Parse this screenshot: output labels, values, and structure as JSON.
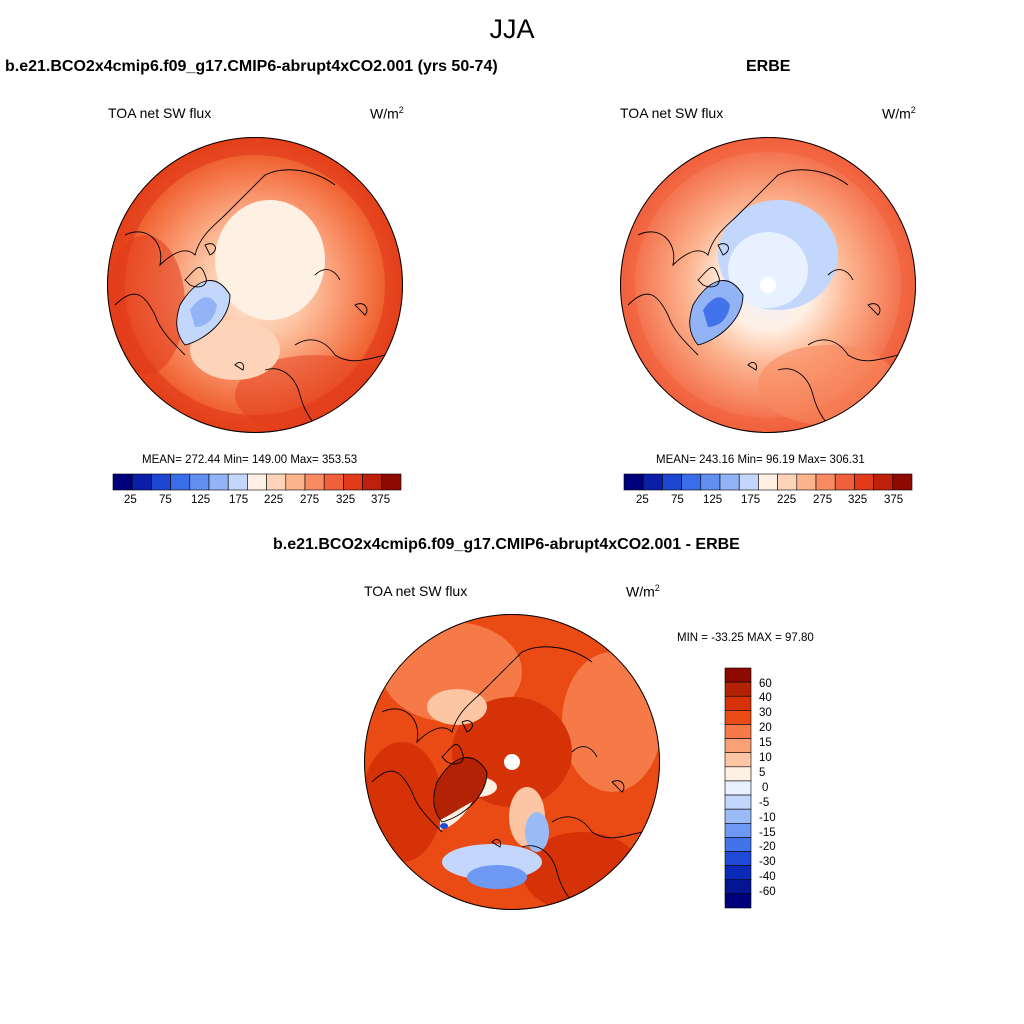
{
  "main_title": "JJA",
  "colors": {
    "seq_palette": [
      "#00007b",
      "#0b1fa6",
      "#1e48d1",
      "#3a6ee8",
      "#6390f0",
      "#92b3f6",
      "#c3d6fb",
      "#fff0e4",
      "#fdd3b9",
      "#fcb48f",
      "#f88b61",
      "#f1603c",
      "#e13b1c",
      "#bd200b",
      "#8c0a00"
    ],
    "diff_palette": [
      "#8c0a00",
      "#b32205",
      "#d63208",
      "#ea4a14",
      "#f67a48",
      "#fba177",
      "#fcc6a4",
      "#fff0e4",
      "#e8f1ff",
      "#c3d6fb",
      "#9bbbf7",
      "#6e99f2",
      "#4273ea",
      "#1f4bd8",
      "#0b2ab8",
      "#031592",
      "#00007b"
    ]
  },
  "panels": {
    "model": {
      "title": "b.e21.BCO2x4cmip6.f09_g17.CMIP6-abrupt4xCO2.001 (yrs 50-74)",
      "variable": "TOA net SW flux",
      "units": "W/m",
      "units_sup": "2",
      "stats": "MEAN= 272.44  Min= 149.00  Max= 353.53",
      "colorbar_labels": [
        "25",
        "75",
        "125",
        "175",
        "225",
        "275",
        "325",
        "375"
      ]
    },
    "obs": {
      "title": "ERBE",
      "variable": "TOA net SW flux",
      "units": "W/m",
      "units_sup": "2",
      "stats": "MEAN= 243.16  Min=  96.19  Max= 306.31",
      "colorbar_labels": [
        "25",
        "75",
        "125",
        "175",
        "225",
        "275",
        "325",
        "375"
      ]
    },
    "diff": {
      "title": "b.e21.BCO2x4cmip6.f09_g17.CMIP6-abrupt4xCO2.001 - ERBE",
      "variable": "TOA net SW flux",
      "units": "W/m",
      "units_sup": "2",
      "stats": "MIN = -33.25 MAX =  97.80",
      "colorbar_labels": [
        "60",
        "40",
        "30",
        "20",
        "15",
        "10",
        "5",
        "0",
        "-5",
        "-10",
        "-15",
        "-20",
        "-30",
        "-40",
        "-60"
      ]
    }
  }
}
